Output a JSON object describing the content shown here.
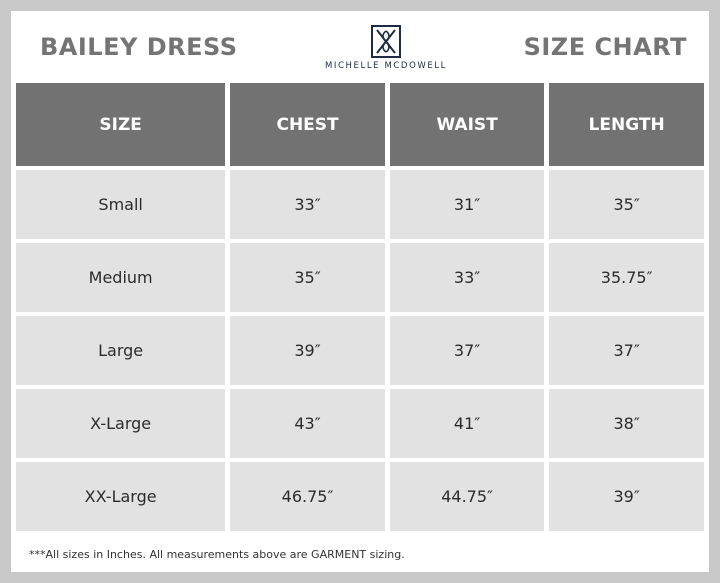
{
  "header": {
    "product_title": "BAILEY DRESS",
    "chart_title": "SIZE CHART",
    "brand_name": "MICHELLE MCDOWELL",
    "brand_logo_icon": "monogram-crossed-diamond-icon",
    "colors": {
      "title_text": "#747474",
      "brand_navy": "#1f2a44",
      "header_cell": "#727272",
      "body_cell": "#e2e2e2",
      "border": "#c8c8c8"
    }
  },
  "table": {
    "columns": [
      "SIZE",
      "CHEST",
      "WAIST",
      "LENGTH"
    ],
    "rows": [
      [
        "Small",
        "33″",
        "31″",
        "35″"
      ],
      [
        "Medium",
        "35″",
        "33″",
        "35.75″"
      ],
      [
        "Large",
        "39″",
        "37″",
        "37″"
      ],
      [
        "X-Large",
        "43″",
        "41″",
        "38″"
      ],
      [
        "XX-Large",
        "46.75″",
        "44.75″",
        "39″"
      ]
    ]
  },
  "footnote": "***All sizes in Inches. All measurements above are GARMENT sizing."
}
